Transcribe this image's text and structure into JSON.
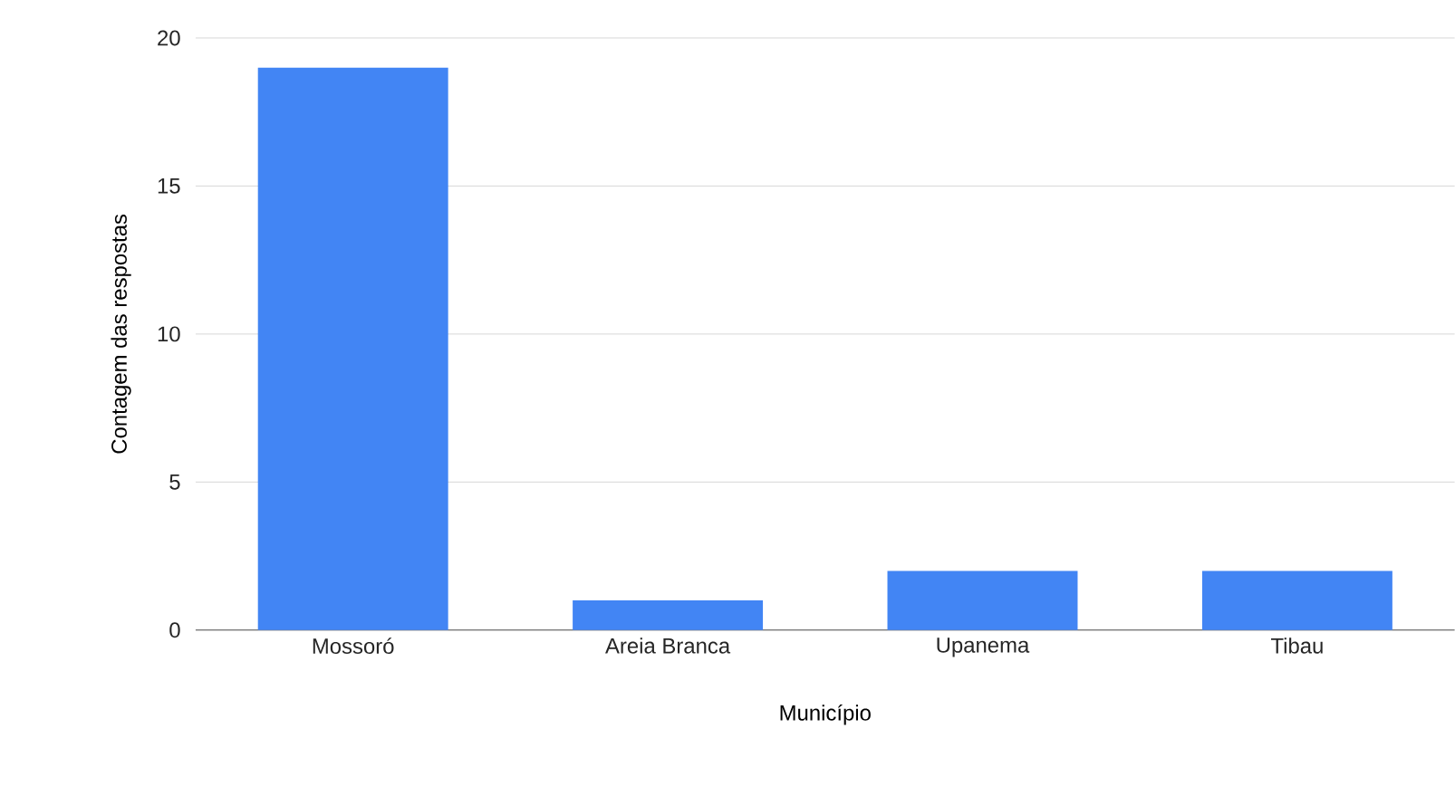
{
  "chart_data": {
    "type": "bar",
    "xlabel": "Município",
    "ylabel": "Contagem das respostas",
    "categories": [
      "Mossoró",
      "Areia Branca",
      "Upanema",
      "Tibau"
    ],
    "values": [
      19,
      1,
      2,
      2
    ],
    "color": "#4285f4",
    "ylim": [
      0,
      20
    ],
    "yticks": [
      0,
      5,
      10,
      15,
      20
    ],
    "grid": "y"
  }
}
